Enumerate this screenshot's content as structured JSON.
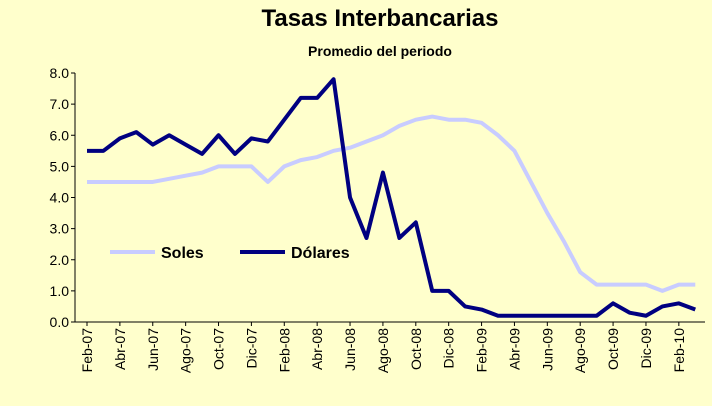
{
  "chart_data": {
    "type": "line",
    "title": "Tasas Interbancarias",
    "subtitle": "Promedio del periodo",
    "categories": [
      "Feb-07",
      null,
      "Abr-07",
      null,
      "Jun-07",
      null,
      "Ago-07",
      null,
      "Oct-07",
      null,
      "Dic-07",
      null,
      "Feb-08",
      null,
      "Abr-08",
      null,
      "Jun-08",
      null,
      "Ago-08",
      null,
      "Oct-08",
      null,
      "Dic-08",
      null,
      "Feb-09",
      null,
      "Abr-09",
      null,
      "Jun-09",
      null,
      "Ago-09",
      null,
      "Oct-09",
      null,
      "Dic-09",
      null,
      "Feb-10",
      null
    ],
    "series": [
      {
        "name": "Soles",
        "color": "#c8ccff",
        "values": [
          4.5,
          4.5,
          4.5,
          4.5,
          4.5,
          4.6,
          4.7,
          4.8,
          5.0,
          5.0,
          5.0,
          4.5,
          5.0,
          5.2,
          5.3,
          5.5,
          5.6,
          5.8,
          6.0,
          6.3,
          6.5,
          6.6,
          6.5,
          6.5,
          6.4,
          6.0,
          5.5,
          4.5,
          3.5,
          2.6,
          1.6,
          1.2,
          1.2,
          1.2,
          1.2,
          1.0,
          1.2,
          1.2
        ]
      },
      {
        "name": "Dólares",
        "color": "#000080",
        "values": [
          5.5,
          5.5,
          5.9,
          6.1,
          5.7,
          6.0,
          5.7,
          5.4,
          6.0,
          5.4,
          5.9,
          5.8,
          6.5,
          7.2,
          7.2,
          7.8,
          4.0,
          2.7,
          4.8,
          2.7,
          3.2,
          1.0,
          1.0,
          0.5,
          0.4,
          0.2,
          0.2,
          0.2,
          0.2,
          0.2,
          0.2,
          0.2,
          0.6,
          0.3,
          0.2,
          0.5,
          0.6,
          0.4
        ]
      }
    ],
    "ylim": [
      0,
      8
    ],
    "yticks": [
      {
        "value": 0,
        "label": "0.0"
      },
      {
        "value": 1,
        "label": "1.0"
      },
      {
        "value": 2,
        "label": "2.0"
      },
      {
        "value": 3,
        "label": "3.0"
      },
      {
        "value": 4,
        "label": "4.0"
      },
      {
        "value": 5,
        "label": "5.0"
      },
      {
        "value": 6,
        "label": "6.0"
      },
      {
        "value": 7,
        "label": "7.0"
      },
      {
        "value": 8,
        "label": "8.0"
      }
    ],
    "grid": false,
    "background": "#ffffcc"
  }
}
